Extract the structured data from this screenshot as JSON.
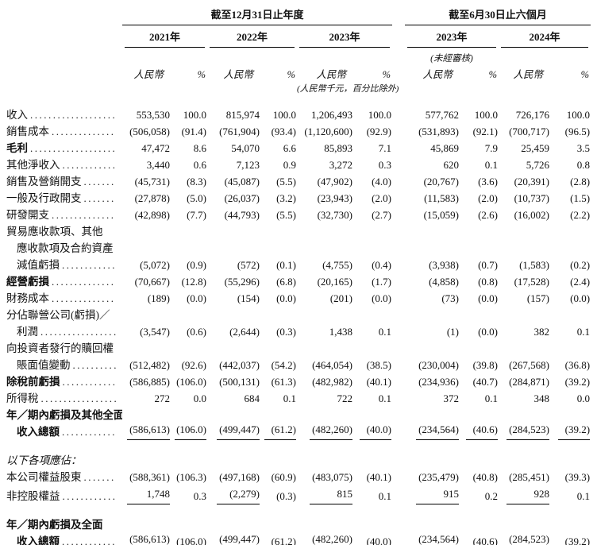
{
  "header": {
    "groups": [
      {
        "title": "截至12月31日止年度"
      },
      {
        "title": "截至6月30日止六個月"
      }
    ],
    "years": [
      {
        "label": "2021年"
      },
      {
        "label": "2022年"
      },
      {
        "label": "2023年"
      },
      {
        "label": "2023年"
      },
      {
        "label": "2024年"
      }
    ],
    "unaudited_note": "(未經審核)",
    "currency_label": "人民幣",
    "percent_label": "%",
    "unit_note": "(人民幣千元，百分比除外)"
  },
  "rows": [
    {
      "label_lines": [
        "收入"
      ],
      "style": "normal",
      "leader": true,
      "underline": "none",
      "values": [
        "553,530",
        "100.0",
        "815,974",
        "100.0",
        "1,206,493",
        "100.0",
        "577,762",
        "100.0",
        "726,176",
        "100.0"
      ]
    },
    {
      "label_lines": [
        "銷售成本"
      ],
      "style": "normal",
      "leader": true,
      "underline": "none",
      "values": [
        "(506,058)",
        "(91.4)",
        "(761,904)",
        "(93.4)",
        "(1,120,600)",
        "(92.9)",
        "(531,893)",
        "(92.1)",
        "(700,717)",
        "(96.5)"
      ]
    },
    {
      "label_lines": [
        "毛利"
      ],
      "style": "bold",
      "leader": true,
      "underline": "none",
      "values": [
        "47,472",
        "8.6",
        "54,070",
        "6.6",
        "85,893",
        "7.1",
        "45,869",
        "7.9",
        "25,459",
        "3.5"
      ]
    },
    {
      "label_lines": [
        "其他淨收入"
      ],
      "style": "normal",
      "leader": true,
      "underline": "none",
      "values": [
        "3,440",
        "0.6",
        "7,123",
        "0.9",
        "3,272",
        "0.3",
        "620",
        "0.1",
        "5,726",
        "0.8"
      ]
    },
    {
      "label_lines": [
        "銷售及營銷開支"
      ],
      "style": "normal",
      "leader": true,
      "underline": "none",
      "values": [
        "(45,731)",
        "(8.3)",
        "(45,087)",
        "(5.5)",
        "(47,902)",
        "(4.0)",
        "(20,767)",
        "(3.6)",
        "(20,391)",
        "(2.8)"
      ]
    },
    {
      "label_lines": [
        "一般及行政開支"
      ],
      "style": "normal",
      "leader": true,
      "underline": "none",
      "values": [
        "(27,878)",
        "(5.0)",
        "(26,037)",
        "(3.2)",
        "(23,943)",
        "(2.0)",
        "(11,583)",
        "(2.0)",
        "(10,737)",
        "(1.5)"
      ]
    },
    {
      "label_lines": [
        "研發開支"
      ],
      "style": "normal",
      "leader": true,
      "underline": "none",
      "values": [
        "(42,898)",
        "(7.7)",
        "(44,793)",
        "(5.5)",
        "(32,730)",
        "(2.7)",
        "(15,059)",
        "(2.6)",
        "(16,002)",
        "(2.2)"
      ]
    },
    {
      "label_lines": [
        "貿易應收款項、其他",
        "應收款項及合約資產",
        "減值虧損"
      ],
      "style": "normal",
      "leader": true,
      "underline": "none",
      "values": [
        "(5,072)",
        "(0.9)",
        "(572)",
        "(0.1)",
        "(4,755)",
        "(0.4)",
        "(3,938)",
        "(0.7)",
        "(1,583)",
        "(0.2)"
      ]
    },
    {
      "label_lines": [
        "經營虧損"
      ],
      "style": "bold",
      "leader": true,
      "underline": "none",
      "values": [
        "(70,667)",
        "(12.8)",
        "(55,296)",
        "(6.8)",
        "(20,165)",
        "(1.7)",
        "(4,858)",
        "(0.8)",
        "(17,528)",
        "(2.4)"
      ]
    },
    {
      "label_lines": [
        "財務成本"
      ],
      "style": "normal",
      "leader": true,
      "underline": "none",
      "values": [
        "(189)",
        "(0.0)",
        "(154)",
        "(0.0)",
        "(201)",
        "(0.0)",
        "(73)",
        "(0.0)",
        "(157)",
        "(0.0)"
      ]
    },
    {
      "label_lines": [
        "分佔聯營公司(虧損)／",
        "利潤"
      ],
      "style": "normal",
      "leader": true,
      "underline": "none",
      "values": [
        "(3,547)",
        "(0.6)",
        "(2,644)",
        "(0.3)",
        "1,438",
        "0.1",
        "(1)",
        "(0.0)",
        "382",
        "0.1"
      ]
    },
    {
      "label_lines": [
        "向投資者發行的贖回權",
        "賬面值變動"
      ],
      "style": "normal",
      "leader": true,
      "underline": "none",
      "values": [
        "(512,482)",
        "(92.6)",
        "(442,037)",
        "(54.2)",
        "(464,054)",
        "(38.5)",
        "(230,004)",
        "(39.8)",
        "(267,568)",
        "(36.8)"
      ]
    },
    {
      "label_lines": [
        "除稅前虧損"
      ],
      "style": "bold",
      "leader": true,
      "underline": "none",
      "values": [
        "(586,885)",
        "(106.0)",
        "(500,131)",
        "(61.3)",
        "(482,982)",
        "(40.1)",
        "(234,936)",
        "(40.7)",
        "(284,871)",
        "(39.2)"
      ]
    },
    {
      "label_lines": [
        "所得稅"
      ],
      "style": "normal",
      "leader": true,
      "underline": "none",
      "values": [
        "272",
        "0.0",
        "684",
        "0.1",
        "722",
        "0.1",
        "372",
        "0.1",
        "348",
        "0.0"
      ]
    },
    {
      "label_lines": [
        "年／期內虧損及其他全面",
        "收入總額"
      ],
      "style": "bold",
      "leader": true,
      "underline": "all",
      "values": [
        "(586,613)",
        "(106.0)",
        "(499,447)",
        "(61.2)",
        "(482,260)",
        "(40.0)",
        "(234,564)",
        "(40.6)",
        "(284,523)",
        "(39.2)"
      ]
    },
    {
      "label_lines": [
        "以下各項應佔："
      ],
      "style": "italic",
      "leader": false,
      "underline": "none",
      "gap_before": true,
      "values": []
    },
    {
      "label_lines": [
        "本公司權益股東"
      ],
      "style": "normal",
      "leader": true,
      "underline": "none",
      "values": [
        "(588,361)",
        "(106.3)",
        "(497,168)",
        "(60.9)",
        "(483,075)",
        "(40.1)",
        "(235,479)",
        "(40.8)",
        "(285,451)",
        "(39.3)"
      ]
    },
    {
      "label_lines": [
        "非控股權益"
      ],
      "style": "normal",
      "leader": true,
      "underline": "amounts",
      "values": [
        "1,748",
        "0.3",
        "(2,279)",
        "(0.3)",
        "815",
        "0.1",
        "915",
        "0.2",
        "928",
        "0.1"
      ]
    },
    {
      "label_lines": [
        "年／期內虧損及全面",
        "收入總額"
      ],
      "style": "bold",
      "leader": true,
      "underline": "double",
      "gap_before": true,
      "values": [
        "(586,613)",
        "(106.0)",
        "(499,447)",
        "(61.2)",
        "(482,260)",
        "(40.0)",
        "(234,564)",
        "(40.6)",
        "(284,523)",
        "(39.2)"
      ]
    }
  ]
}
